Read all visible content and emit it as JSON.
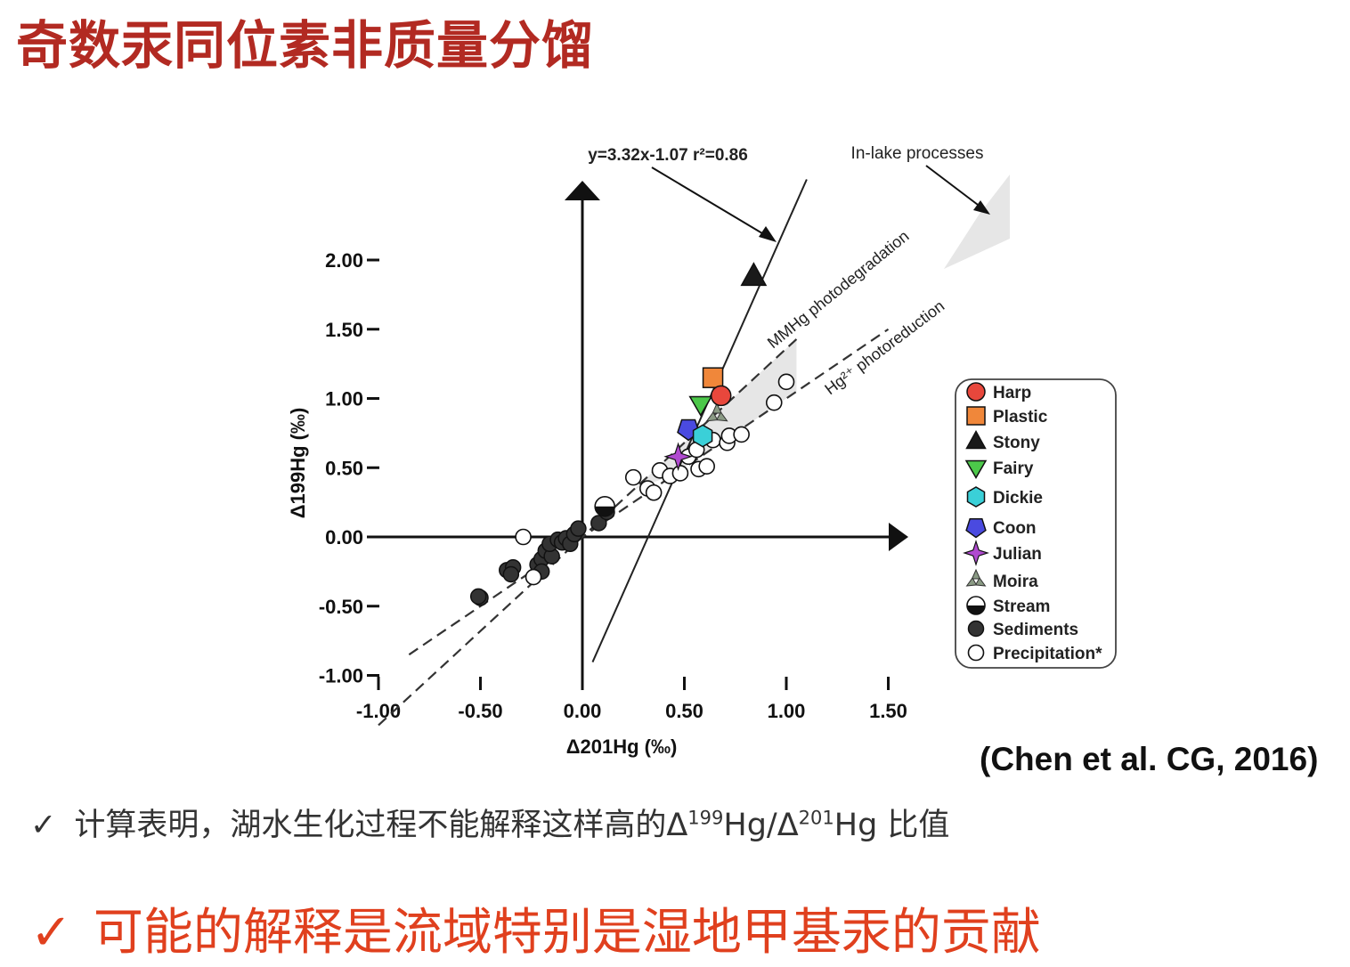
{
  "slide": {
    "title": "奇数汞同位素非质量分馏",
    "citation": "(Chen et al. CG, 2016)",
    "bullets": [
      {
        "check": "✓",
        "prefix": "计算表明，湖水生化过程不能解释这样高的Δ",
        "sup1": "199",
        "mid": "Hg/Δ",
        "sup2": "201",
        "suffix": "Hg 比值"
      },
      {
        "check": "✓",
        "text": "可能的解释是流域特别是湿地甲基汞的贡献"
      }
    ],
    "colors": {
      "title": "#b22a22",
      "bullet2": "#e0401e",
      "bullet1": "#333333"
    }
  },
  "chart_data": {
    "type": "scatter",
    "title": "",
    "xlabel": "Δ201Hg (‰)",
    "ylabel": "Δ199Hg (‰)",
    "xlim": [
      -1.0,
      1.5
    ],
    "ylim": [
      -1.0,
      2.0
    ],
    "xticks": [
      "-1.00",
      "-0.50",
      "0.00",
      "0.50",
      "1.00",
      "1.50"
    ],
    "yticks": [
      "2.00",
      "1.50",
      "1.00",
      "0.50",
      "0.00",
      "-0.50",
      "-1.00"
    ],
    "grid": false,
    "legend_position": "right",
    "annotations": {
      "regression": "y=3.32x-1.07 r²=0.86",
      "in_lake": "In-lake processes",
      "mmhg": "MMHg photodegradation",
      "hg2": "Hg²⁺ photoreduction"
    },
    "regression_line": {
      "slope": 3.32,
      "intercept": -1.07,
      "x_range": [
        0.05,
        1.1
      ]
    },
    "reference_lines": [
      {
        "name": "MMHg photodegradation",
        "slope": 1.36,
        "x_range": [
          -1.0,
          1.05
        ]
      },
      {
        "name": "Hg2+ photoreduction",
        "slope": 1.0,
        "x_range": [
          -0.85,
          1.5
        ]
      }
    ],
    "series": [
      {
        "name": "Harp",
        "marker": "circle",
        "color": "#e8473c",
        "points": [
          [
            0.68,
            1.02
          ]
        ]
      },
      {
        "name": "Plastic",
        "marker": "square",
        "color": "#f0873a",
        "points": [
          [
            0.64,
            1.15
          ]
        ]
      },
      {
        "name": "Stony",
        "marker": "triangle-up",
        "color": "#1a1a1a",
        "points": [
          [
            0.84,
            1.88
          ]
        ]
      },
      {
        "name": "Fairy",
        "marker": "triangle-down",
        "color": "#4cc84a",
        "points": [
          [
            0.58,
            0.96
          ]
        ]
      },
      {
        "name": "Dickie",
        "marker": "hexagon",
        "color": "#3ad0d8",
        "points": [
          [
            0.59,
            0.73
          ]
        ]
      },
      {
        "name": "Coon",
        "marker": "pentagon",
        "color": "#4a4ae0",
        "points": [
          [
            0.52,
            0.78
          ]
        ]
      },
      {
        "name": "Julian",
        "marker": "star",
        "color": "#b04ad0",
        "points": [
          [
            0.47,
            0.58
          ]
        ]
      },
      {
        "name": "Moira",
        "marker": "tri-star",
        "color": "#8a9a84",
        "points": [
          [
            0.66,
            0.88
          ]
        ]
      },
      {
        "name": "Stream",
        "marker": "half-circle",
        "color": "#000000",
        "points": [
          [
            0.11,
            0.22
          ]
        ]
      },
      {
        "name": "Sediments",
        "marker": "circle",
        "color": "#333333",
        "points": [
          [
            -0.5,
            -0.44
          ],
          [
            -0.51,
            -0.43
          ],
          [
            -0.37,
            -0.24
          ],
          [
            -0.34,
            -0.22
          ],
          [
            -0.35,
            -0.27
          ],
          [
            -0.22,
            -0.2
          ],
          [
            -0.2,
            -0.16
          ],
          [
            -0.18,
            -0.1
          ],
          [
            -0.15,
            -0.14
          ],
          [
            -0.16,
            -0.05
          ],
          [
            -0.12,
            -0.02
          ],
          [
            -0.1,
            -0.04
          ],
          [
            -0.08,
            -0.01
          ],
          [
            -0.06,
            -0.05
          ],
          [
            -0.04,
            0.02
          ],
          [
            -0.02,
            0.06
          ],
          [
            0.08,
            0.1
          ],
          [
            0.12,
            0.18
          ],
          [
            -0.2,
            -0.25
          ]
        ]
      },
      {
        "name": "Precipitation*",
        "marker": "circle-open",
        "color": "#ffffff",
        "points": [
          [
            -0.29,
            0.0
          ],
          [
            -0.24,
            -0.29
          ],
          [
            0.25,
            0.43
          ],
          [
            0.32,
            0.35
          ],
          [
            0.35,
            0.32
          ],
          [
            0.38,
            0.48
          ],
          [
            0.43,
            0.44
          ],
          [
            0.48,
            0.46
          ],
          [
            0.52,
            0.58
          ],
          [
            0.56,
            0.63
          ],
          [
            0.57,
            0.49
          ],
          [
            0.61,
            0.51
          ],
          [
            0.64,
            0.7
          ],
          [
            0.71,
            0.68
          ],
          [
            0.72,
            0.73
          ],
          [
            0.78,
            0.74
          ],
          [
            0.94,
            0.97
          ],
          [
            1.0,
            1.12
          ]
        ]
      }
    ]
  }
}
